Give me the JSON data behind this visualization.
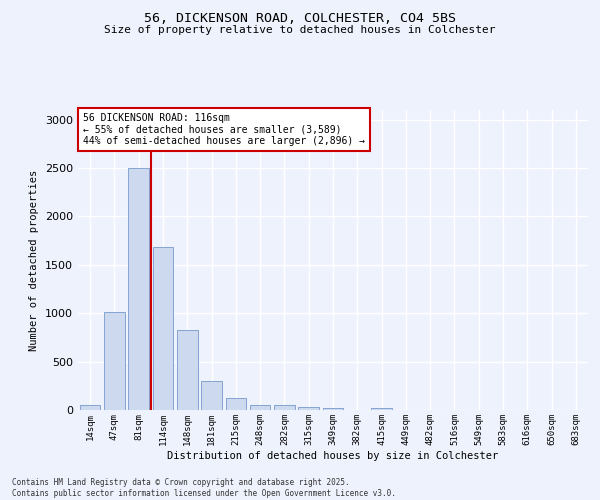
{
  "title1": "56, DICKENSON ROAD, COLCHESTER, CO4 5BS",
  "title2": "Size of property relative to detached houses in Colchester",
  "xlabel": "Distribution of detached houses by size in Colchester",
  "ylabel": "Number of detached properties",
  "categories": [
    "14sqm",
    "47sqm",
    "81sqm",
    "114sqm",
    "148sqm",
    "181sqm",
    "215sqm",
    "248sqm",
    "282sqm",
    "315sqm",
    "349sqm",
    "382sqm",
    "415sqm",
    "449sqm",
    "482sqm",
    "516sqm",
    "549sqm",
    "583sqm",
    "616sqm",
    "650sqm",
    "683sqm"
  ],
  "values": [
    50,
    1010,
    2500,
    1680,
    830,
    300,
    120,
    55,
    50,
    35,
    25,
    0,
    20,
    0,
    0,
    0,
    0,
    0,
    0,
    0,
    0
  ],
  "bar_color": "#ccd9ef",
  "bar_edge_color": "#7799cc",
  "property_line_index": 3,
  "property_line_color": "#cc0000",
  "annotation_text": "56 DICKENSON ROAD: 116sqm\n← 55% of detached houses are smaller (3,589)\n44% of semi-detached houses are larger (2,896) →",
  "annotation_box_color": "#cc0000",
  "annotation_text_color": "#000000",
  "ylim": [
    0,
    3100
  ],
  "yticks": [
    0,
    500,
    1000,
    1500,
    2000,
    2500,
    3000
  ],
  "background_color": "#eef2fc",
  "grid_color": "#ffffff",
  "footer_line1": "Contains HM Land Registry data © Crown copyright and database right 2025.",
  "footer_line2": "Contains public sector information licensed under the Open Government Licence v3.0."
}
